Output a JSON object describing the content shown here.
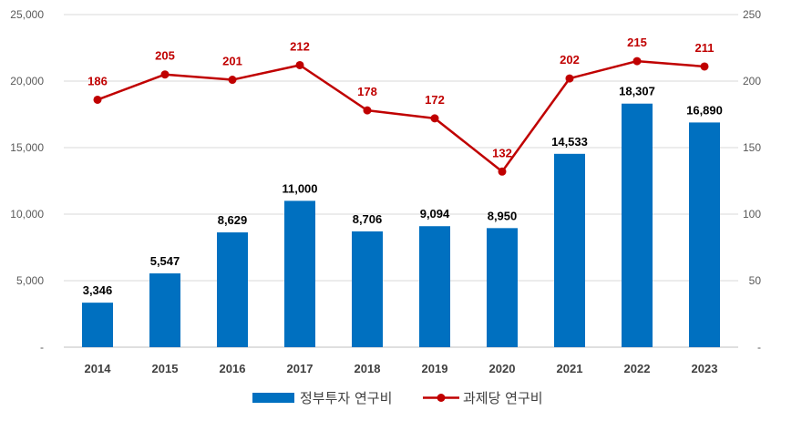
{
  "chart_data": {
    "type": "bar",
    "categories": [
      "2014",
      "2015",
      "2016",
      "2017",
      "2018",
      "2019",
      "2020",
      "2021",
      "2022",
      "2023"
    ],
    "series": [
      {
        "name": "정부투자 연구비",
        "type": "bar",
        "axis": "left",
        "color": "#0070C0",
        "values": [
          3346,
          5547,
          8629,
          11000,
          8706,
          9094,
          8950,
          14533,
          18307,
          16890
        ],
        "labels": [
          "3,346",
          "5,547",
          "8,629",
          "11,000",
          "8,706",
          "9,094",
          "8,950",
          "14,533",
          "18,307",
          "16,890"
        ]
      },
      {
        "name": "과제당 연구비",
        "type": "line",
        "axis": "right",
        "color": "#C00000",
        "values": [
          186,
          205,
          201,
          212,
          178,
          172,
          132,
          202,
          215,
          211
        ],
        "labels": [
          "186",
          "205",
          "201",
          "212",
          "178",
          "172",
          "132",
          "202",
          "215",
          "211"
        ]
      }
    ],
    "y_left": {
      "ylim": [
        0,
        25000
      ],
      "ticks": [
        0,
        5000,
        10000,
        15000,
        20000,
        25000
      ],
      "tick_labels": [
        "-",
        "5,000",
        "10,000",
        "15,000",
        "20,000",
        "25,000"
      ]
    },
    "y_right": {
      "ylim": [
        0,
        250
      ],
      "ticks": [
        0,
        50,
        100,
        150,
        200,
        250
      ],
      "tick_labels": [
        "-",
        "50",
        "100",
        "150",
        "200",
        "250"
      ]
    },
    "grid": true,
    "legend": "bottom"
  }
}
